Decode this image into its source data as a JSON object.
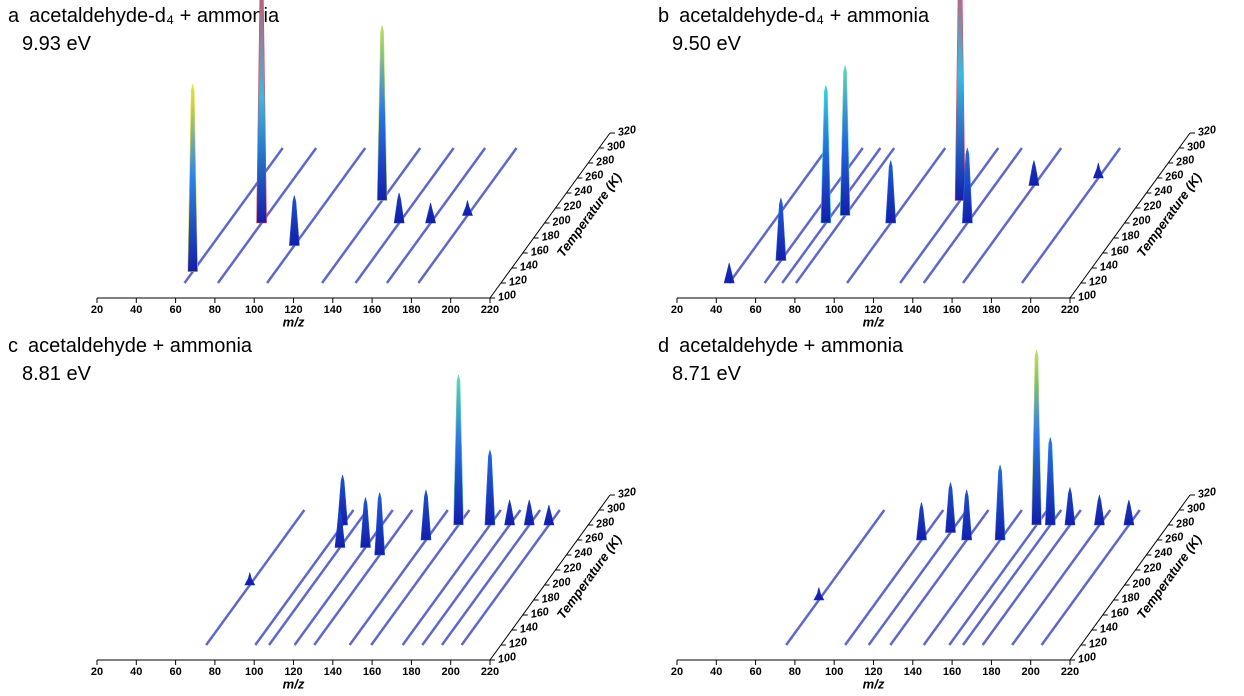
{
  "chart_data": [
    {
      "type": "spectrum3d",
      "panel": "a",
      "title": "acetaldehyde-d₄ + ammonia",
      "subtitle": "9.93 eV",
      "xlabel": "m/z",
      "ylabel": "Temperature (K)",
      "xlim": [
        20,
        220
      ],
      "xticks": [
        20,
        40,
        60,
        80,
        100,
        120,
        140,
        160,
        180,
        200,
        220
      ],
      "ylim": [
        100,
        320
      ],
      "yticks": [
        100,
        120,
        140,
        160,
        180,
        200,
        220,
        240,
        260,
        280,
        300,
        320
      ],
      "x": [
        59,
        76,
        101,
        129,
        146,
        162,
        178
      ],
      "y": [
        135,
        200,
        170,
        230,
        200,
        200,
        210
      ],
      "values": [
        0.75,
        1.0,
        0.2,
        0.7,
        0.12,
        0.08,
        0.06
      ]
    },
    {
      "type": "spectrum3d",
      "panel": "b",
      "title": "acetaldehyde-d₄ + ammonia",
      "subtitle": "9.50 eV",
      "xlabel": "m/z",
      "ylabel": "Temperature (K)",
      "xlim": [
        20,
        220
      ],
      "xticks": [
        20,
        40,
        60,
        80,
        100,
        120,
        140,
        160,
        180,
        200,
        220
      ],
      "ylim": [
        100,
        320
      ],
      "yticks": [
        100,
        120,
        140,
        160,
        180,
        200,
        220,
        240,
        260,
        280,
        300,
        320
      ],
      "x": [
        41,
        59,
        68,
        75,
        101,
        128,
        140,
        160,
        190
      ],
      "y": [
        120,
        150,
        200,
        210,
        200,
        230,
        200,
        250,
        260
      ],
      "values": [
        0.08,
        0.25,
        0.55,
        0.6,
        0.25,
        1.0,
        0.3,
        0.1,
        0.06
      ]
    },
    {
      "type": "spectrum3d",
      "panel": "c",
      "title": "acetaldehyde + ammonia",
      "subtitle": "8.81 eV",
      "xlabel": "m/z",
      "ylabel": "Temperature (K)",
      "xlim": [
        20,
        220
      ],
      "xticks": [
        20,
        40,
        60,
        80,
        100,
        120,
        140,
        160,
        180,
        200,
        220
      ],
      "ylim": [
        100,
        320
      ],
      "yticks": [
        100,
        120,
        140,
        160,
        180,
        200,
        220,
        240,
        260,
        280,
        300,
        320
      ],
      "x": [
        70,
        95,
        102,
        115,
        125,
        143,
        154,
        170,
        180,
        190,
        200
      ],
      "y": [
        200,
        280,
        250,
        250,
        240,
        260,
        280,
        280,
        280,
        280,
        280
      ],
      "values": [
        0.05,
        0.2,
        0.15,
        0.2,
        0.25,
        0.2,
        0.6,
        0.3,
        0.1,
        0.1,
        0.08
      ]
    },
    {
      "type": "spectrum3d",
      "panel": "d",
      "title": "acetaldehyde + ammonia",
      "subtitle": "8.71 eV",
      "xlabel": "m/z",
      "ylabel": "Temperature (K)",
      "xlim": [
        20,
        220
      ],
      "xticks": [
        20,
        40,
        60,
        80,
        100,
        120,
        140,
        160,
        180,
        200,
        220
      ],
      "ylim": [
        100,
        320
      ],
      "yticks": [
        100,
        120,
        140,
        160,
        180,
        200,
        220,
        240,
        260,
        280,
        300,
        320
      ],
      "x": [
        70,
        100,
        112,
        123,
        140,
        153,
        160,
        170,
        185,
        200
      ],
      "y": [
        180,
        260,
        270,
        260,
        260,
        280,
        280,
        280,
        280,
        280
      ],
      "values": [
        0.05,
        0.15,
        0.2,
        0.2,
        0.3,
        0.7,
        0.35,
        0.15,
        0.12,
        0.1
      ]
    }
  ]
}
